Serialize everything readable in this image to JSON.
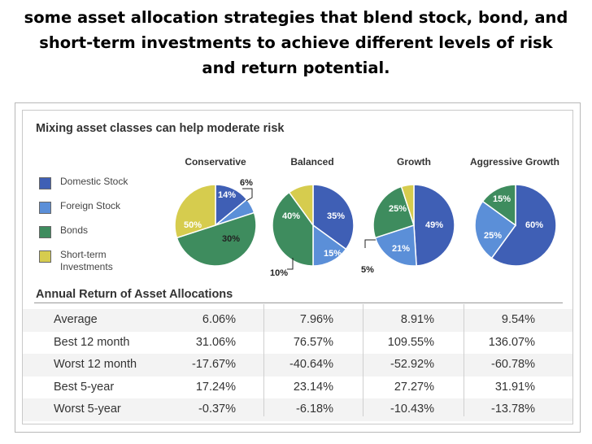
{
  "heading": {
    "line1": "some asset allocation strategies that blend stock, bond, and",
    "line2": "short-term investments to achieve different levels of risk",
    "line3": "and return potential."
  },
  "panel_title": "Mixing asset classes can help moderate risk",
  "legend": [
    {
      "label": "Domestic Stock",
      "color": "#3f5fb5"
    },
    {
      "label": "Foreign Stock",
      "color": "#5b8fd8"
    },
    {
      "label": "Bonds",
      "color": "#3e8c5e"
    },
    {
      "label": "Short-term Investments",
      "color": "#d6cc4e"
    }
  ],
  "chart_data": {
    "type": "pie",
    "categories": [
      "Domestic Stock",
      "Foreign Stock",
      "Bonds",
      "Short-term Investments"
    ],
    "colors": [
      "#3f5fb5",
      "#5b8fd8",
      "#3e8c5e",
      "#d6cc4e"
    ],
    "pies": [
      {
        "name": "Conservative",
        "values": [
          14,
          6,
          50,
          30
        ],
        "labels": [
          "14%",
          "6%",
          "50%",
          "30%"
        ]
      },
      {
        "name": "Balanced",
        "values": [
          35,
          15,
          40,
          10
        ],
        "labels": [
          "35%",
          "15%",
          "40%",
          "10%"
        ]
      },
      {
        "name": "Growth",
        "values": [
          49,
          21,
          25,
          5
        ],
        "labels": [
          "49%",
          "21%",
          "25%",
          "5%"
        ]
      },
      {
        "name": "Aggressive Growth",
        "values": [
          60,
          25,
          15,
          0
        ],
        "labels": [
          "60%",
          "25%",
          "15%",
          ""
        ]
      }
    ]
  },
  "returns": {
    "title": "Annual Return of Asset Allocations",
    "rows": [
      {
        "label": "Average",
        "values": [
          "6.06%",
          "7.96%",
          "8.91%",
          "9.54%"
        ]
      },
      {
        "label": "Best 12 month",
        "values": [
          "31.06%",
          "76.57%",
          "109.55%",
          "136.07%"
        ]
      },
      {
        "label": "Worst 12 month",
        "values": [
          "-17.67%",
          "-40.64%",
          "-52.92%",
          "-60.78%"
        ]
      },
      {
        "label": "Best 5-year",
        "values": [
          "17.24%",
          "23.14%",
          "27.27%",
          "31.91%"
        ]
      },
      {
        "label": "Worst 5-year",
        "values": [
          "-0.37%",
          "-6.18%",
          "-10.43%",
          "-13.78%"
        ]
      }
    ]
  }
}
